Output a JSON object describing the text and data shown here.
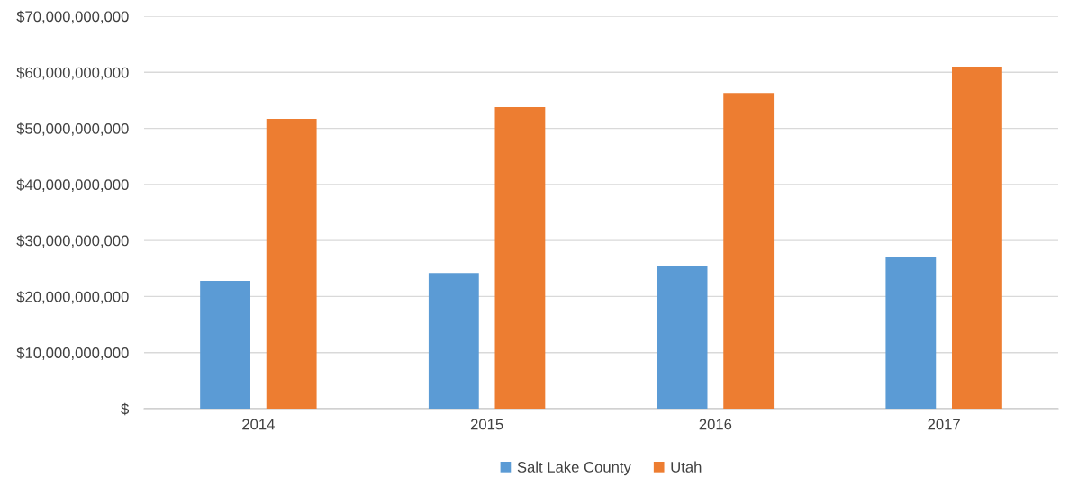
{
  "chart_data": {
    "type": "bar",
    "categories": [
      "2014",
      "2015",
      "2016",
      "2017"
    ],
    "series": [
      {
        "name": "Salt Lake County",
        "color": "#5b9bd5",
        "values": [
          22800000000,
          24200000000,
          25400000000,
          27000000000
        ]
      },
      {
        "name": "Utah",
        "color": "#ed7d31",
        "values": [
          51700000000,
          53800000000,
          56300000000,
          61000000000
        ]
      }
    ],
    "ylim": [
      0,
      70000000000
    ],
    "yticks": [
      {
        "value": 0,
        "label": "$"
      },
      {
        "value": 10000000000,
        "label": "$10,000,000,000"
      },
      {
        "value": 20000000000,
        "label": "$20,000,000,000"
      },
      {
        "value": 30000000000,
        "label": "$30,000,000,000"
      },
      {
        "value": 40000000000,
        "label": "$40,000,000,000"
      },
      {
        "value": 50000000000,
        "label": "$50,000,000,000"
      },
      {
        "value": 60000000000,
        "label": "$60,000,000,000"
      },
      {
        "value": 70000000000,
        "label": "$70,000,000,000"
      }
    ],
    "grid": "y",
    "legend": "bottom"
  }
}
